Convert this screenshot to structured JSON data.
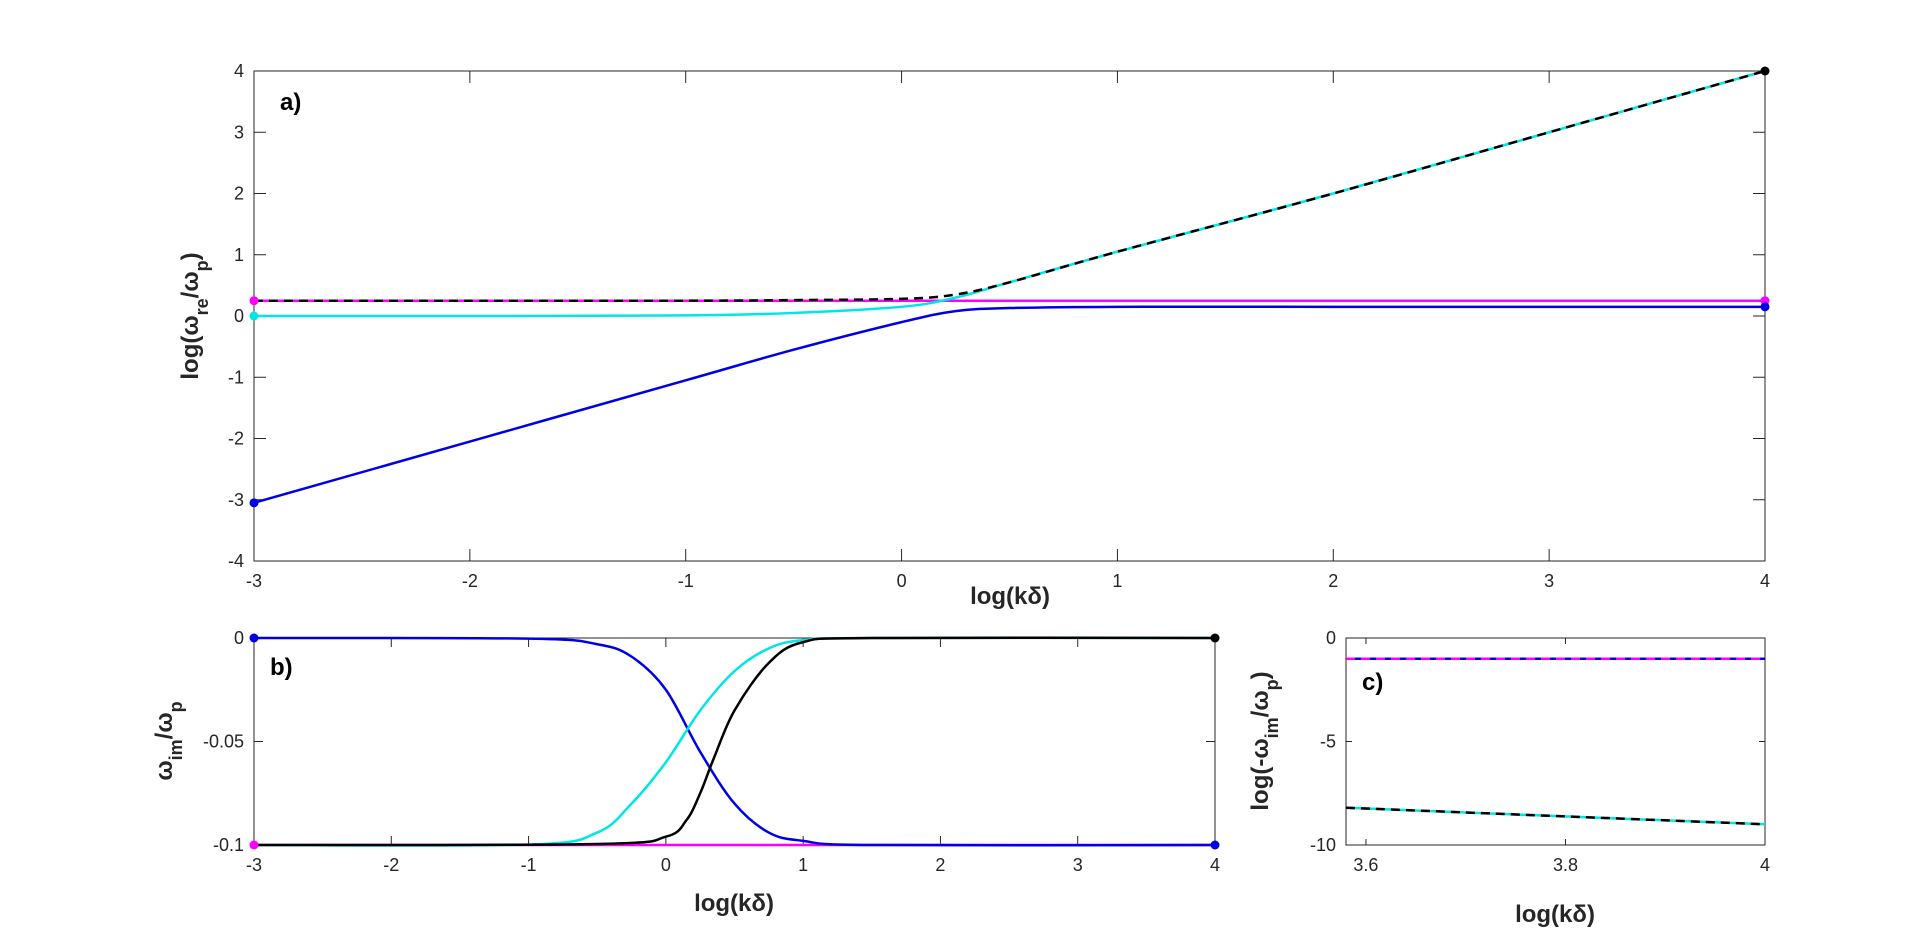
{
  "chart_data": [
    {
      "id": "a",
      "type": "line",
      "panel_label": "a)",
      "xlabel": "log(kδ)",
      "ylabel": "log(ω_re/ω_p)",
      "xlim": [
        -3,
        4
      ],
      "ylim": [
        -4,
        4
      ],
      "xticks": [
        -3,
        -2,
        -1,
        0,
        1,
        2,
        3,
        4
      ],
      "yticks": [
        -4,
        -3,
        -2,
        -1,
        0,
        1,
        2,
        3,
        4
      ],
      "grid": false,
      "series": [
        {
          "color": "#ff00ff",
          "dash": false,
          "x": [
            -3,
            0,
            4
          ],
          "y": [
            0.25,
            0.25,
            0.25
          ]
        },
        {
          "color": "#0000e6",
          "dash": false,
          "x": [
            -3,
            -2,
            -1,
            -0.5,
            0,
            0.25,
            0.5,
            1,
            2,
            3,
            4
          ],
          "y": [
            -3.05,
            -2.05,
            -1.05,
            -0.55,
            -0.1,
            0.08,
            0.13,
            0.15,
            0.15,
            0.15,
            0.15
          ]
        },
        {
          "color": "#00e6e6",
          "dash": false,
          "x": [
            -3,
            -2,
            -1,
            -0.5,
            0,
            0.25,
            0.5,
            1,
            2,
            3,
            4
          ],
          "y": [
            0.0,
            0.0,
            0.01,
            0.05,
            0.15,
            0.3,
            0.55,
            1.05,
            2.0,
            3.0,
            4.0
          ]
        },
        {
          "color": "#000000",
          "dash": true,
          "x": [
            -3,
            -2,
            -1,
            -0.5,
            0,
            0.25,
            0.5,
            1,
            2,
            3,
            4
          ],
          "y": [
            0.25,
            0.25,
            0.25,
            0.26,
            0.28,
            0.35,
            0.55,
            1.05,
            2.0,
            3.0,
            4.0
          ]
        }
      ],
      "markers": [
        {
          "x": -3,
          "y": 0.25,
          "color": "#ff00ff"
        },
        {
          "x": -3,
          "y": 0.0,
          "color": "#00e6e6"
        },
        {
          "x": -3,
          "y": -3.05,
          "color": "#0000e6"
        },
        {
          "x": 4,
          "y": 4.0,
          "color": "#000000"
        },
        {
          "x": 4,
          "y": 0.25,
          "color": "#ff00ff"
        },
        {
          "x": 4,
          "y": 0.15,
          "color": "#0000e6"
        }
      ]
    },
    {
      "id": "b",
      "type": "line",
      "panel_label": "b)",
      "xlabel": "log(kδ)",
      "ylabel": "ω_im/ω_p",
      "xlim": [
        -3,
        4
      ],
      "ylim": [
        -0.1,
        0
      ],
      "xticks": [
        -3,
        -2,
        -1,
        0,
        1,
        2,
        3,
        4
      ],
      "yticks": [
        -0.1,
        -0.05,
        0
      ],
      "ytick_labels": [
        "-0.1",
        "-0.05",
        "0"
      ],
      "grid": false,
      "series": [
        {
          "color": "#ff00ff",
          "dash": false,
          "x": [
            -3,
            0,
            4
          ],
          "y": [
            -0.1,
            -0.1,
            -0.1
          ]
        },
        {
          "color": "#0000e6",
          "dash": false,
          "x": [
            -3,
            -1,
            -0.5,
            -0.25,
            0,
            0.25,
            0.5,
            0.75,
            1,
            1.5,
            4
          ],
          "y": [
            0,
            -0.0003,
            -0.003,
            -0.009,
            -0.025,
            -0.055,
            -0.08,
            -0.094,
            -0.098,
            -0.1,
            -0.1
          ]
        },
        {
          "color": "#00e6e6",
          "dash": false,
          "x": [
            -3,
            -1,
            -0.5,
            -0.25,
            0,
            0.25,
            0.5,
            0.75,
            1,
            1.5,
            4
          ],
          "y": [
            -0.1,
            -0.0998,
            -0.094,
            -0.08,
            -0.06,
            -0.035,
            -0.016,
            -0.005,
            -0.001,
            0,
            0
          ]
        },
        {
          "color": "#000000",
          "dash": false,
          "x": [
            -3,
            -0.5,
            0,
            0.15,
            0.25,
            0.35,
            0.5,
            0.75,
            1,
            1.5,
            4
          ],
          "y": [
            -0.1,
            -0.0995,
            -0.096,
            -0.088,
            -0.075,
            -0.058,
            -0.035,
            -0.012,
            -0.002,
            0,
            0
          ]
        }
      ],
      "markers": [
        {
          "x": -3,
          "y": 0,
          "color": "#0000e6"
        },
        {
          "x": -3,
          "y": -0.1,
          "color": "#ff00ff"
        },
        {
          "x": 4,
          "y": 0,
          "color": "#000000"
        },
        {
          "x": 4,
          "y": -0.1,
          "color": "#0000e6"
        }
      ]
    },
    {
      "id": "c",
      "type": "line",
      "panel_label": "c)",
      "xlabel": "log(kδ)",
      "ylabel": "log(-ω_im/ω_p)",
      "xlim": [
        3.58,
        4
      ],
      "ylim": [
        -10,
        0
      ],
      "xticks": [
        3.6,
        3.8,
        4
      ],
      "yticks": [
        -10,
        -5,
        0
      ],
      "grid": false,
      "series": [
        {
          "color": "#0000e6",
          "dash": false,
          "x": [
            3.58,
            4
          ],
          "y": [
            -1.0,
            -1.0
          ]
        },
        {
          "color": "#ff00ff",
          "dash": true,
          "x": [
            3.58,
            4
          ],
          "y": [
            -1.0,
            -1.0
          ]
        },
        {
          "color": "#00e6e6",
          "dash": false,
          "x": [
            3.58,
            4
          ],
          "y": [
            -8.2,
            -9.0
          ]
        },
        {
          "color": "#000000",
          "dash": true,
          "x": [
            3.58,
            4
          ],
          "y": [
            -8.2,
            -9.0
          ]
        }
      ],
      "markers": []
    }
  ]
}
